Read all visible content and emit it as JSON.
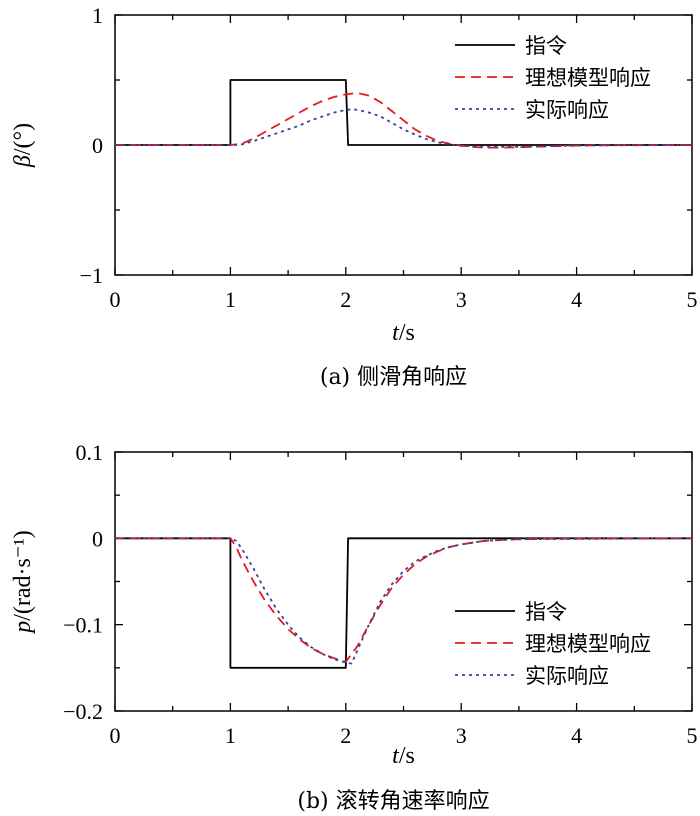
{
  "chart_data": [
    {
      "type": "line",
      "caption": "(a) 侧滑角响应",
      "xlabel_italic": "t",
      "xlabel_rest": "/s",
      "ylabel_italic": "β",
      "ylabel_rest": "/(°)",
      "xlim": [
        0,
        5
      ],
      "ylim": [
        -1,
        1
      ],
      "xticks": [
        "0",
        "1",
        "2",
        "3",
        "4",
        "5"
      ],
      "yticks": [
        "−1",
        "0",
        "1"
      ],
      "ytick_values": [
        -1,
        0,
        1
      ],
      "legend_position": "top-right",
      "grid": false,
      "series": [
        {
          "name": "指令",
          "color": "#000000",
          "style": "solid",
          "points": [
            [
              0,
              0
            ],
            [
              1,
              0
            ],
            [
              1.0,
              0.5
            ],
            [
              2.0,
              0.5
            ],
            [
              2.02,
              0
            ],
            [
              5,
              0
            ]
          ]
        },
        {
          "name": "理想模型响应",
          "color": "#e41a1c",
          "style": "dashed",
          "points": [
            [
              0,
              0
            ],
            [
              1.0,
              0
            ],
            [
              1.1,
              0.01
            ],
            [
              1.2,
              0.05
            ],
            [
              1.3,
              0.1
            ],
            [
              1.4,
              0.15
            ],
            [
              1.5,
              0.2
            ],
            [
              1.6,
              0.25
            ],
            [
              1.7,
              0.3
            ],
            [
              1.8,
              0.34
            ],
            [
              1.9,
              0.37
            ],
            [
              2.0,
              0.39
            ],
            [
              2.1,
              0.4
            ],
            [
              2.2,
              0.38
            ],
            [
              2.3,
              0.33
            ],
            [
              2.4,
              0.26
            ],
            [
              2.5,
              0.19
            ],
            [
              2.6,
              0.12
            ],
            [
              2.7,
              0.07
            ],
            [
              2.8,
              0.03
            ],
            [
              2.9,
              0.01
            ],
            [
              3.0,
              -0.005
            ],
            [
              3.1,
              -0.015
            ],
            [
              3.2,
              -0.02
            ],
            [
              3.3,
              -0.02
            ],
            [
              3.5,
              -0.018
            ],
            [
              3.7,
              -0.012
            ],
            [
              3.9,
              -0.006
            ],
            [
              4.2,
              -0.002
            ],
            [
              5.0,
              0
            ]
          ]
        },
        {
          "name": "实际响应",
          "color": "#3a3fa0",
          "style": "dotted",
          "points": [
            [
              0,
              0
            ],
            [
              1.05,
              0
            ],
            [
              1.1,
              0.005
            ],
            [
              1.2,
              0.03
            ],
            [
              1.3,
              0.06
            ],
            [
              1.4,
              0.09
            ],
            [
              1.5,
              0.12
            ],
            [
              1.6,
              0.15
            ],
            [
              1.7,
              0.19
            ],
            [
              1.8,
              0.22
            ],
            [
              1.9,
              0.25
            ],
            [
              2.0,
              0.27
            ],
            [
              2.05,
              0.275
            ],
            [
              2.1,
              0.27
            ],
            [
              2.2,
              0.25
            ],
            [
              2.3,
              0.22
            ],
            [
              2.4,
              0.17
            ],
            [
              2.5,
              0.12
            ],
            [
              2.6,
              0.08
            ],
            [
              2.7,
              0.045
            ],
            [
              2.8,
              0.02
            ],
            [
              2.9,
              0.005
            ],
            [
              3.0,
              -0.005
            ],
            [
              3.2,
              -0.013
            ],
            [
              3.4,
              -0.015
            ],
            [
              3.6,
              -0.012
            ],
            [
              3.9,
              -0.006
            ],
            [
              4.3,
              -0.002
            ],
            [
              5.0,
              0
            ]
          ]
        }
      ]
    },
    {
      "type": "line",
      "caption": "(b) 滚转角速率响应",
      "xlabel_italic": "t",
      "xlabel_rest": "/s",
      "ylabel_italic": "p",
      "ylabel_rest": "/(rad·s⁻¹)",
      "xlim": [
        0,
        5
      ],
      "ylim": [
        -0.2,
        0.1
      ],
      "xticks": [
        "0",
        "1",
        "2",
        "3",
        "4",
        "5"
      ],
      "yticks": [
        "−0.2",
        "−0.1",
        "0",
        "0.1"
      ],
      "ytick_values": [
        -0.2,
        -0.1,
        0,
        0.1
      ],
      "legend_position": "bottom-right",
      "grid": false,
      "series": [
        {
          "name": "指令",
          "color": "#000000",
          "style": "solid",
          "points": [
            [
              0,
              0
            ],
            [
              1,
              0
            ],
            [
              1.0,
              -0.15
            ],
            [
              2.0,
              -0.15
            ],
            [
              2.02,
              0
            ],
            [
              5,
              0
            ]
          ]
        },
        {
          "name": "理想模型响应",
          "color": "#e41a1c",
          "style": "dashed",
          "points": [
            [
              0,
              0
            ],
            [
              1.0,
              0
            ],
            [
              1.05,
              -0.01
            ],
            [
              1.1,
              -0.025
            ],
            [
              1.2,
              -0.05
            ],
            [
              1.3,
              -0.072
            ],
            [
              1.4,
              -0.09
            ],
            [
              1.5,
              -0.105
            ],
            [
              1.6,
              -0.117
            ],
            [
              1.7,
              -0.127
            ],
            [
              1.8,
              -0.134
            ],
            [
              1.9,
              -0.139
            ],
            [
              2.0,
              -0.143
            ],
            [
              2.1,
              -0.125
            ],
            [
              2.2,
              -0.1
            ],
            [
              2.3,
              -0.077
            ],
            [
              2.4,
              -0.057
            ],
            [
              2.5,
              -0.042
            ],
            [
              2.6,
              -0.03
            ],
            [
              2.7,
              -0.021
            ],
            [
              2.8,
              -0.015
            ],
            [
              2.9,
              -0.01
            ],
            [
              3.0,
              -0.007
            ],
            [
              3.2,
              -0.003
            ],
            [
              3.4,
              -0.0015
            ],
            [
              3.7,
              -0.0005
            ],
            [
              5.0,
              0
            ]
          ]
        },
        {
          "name": "实际响应",
          "color": "#3a3fa0",
          "style": "dotted",
          "points": [
            [
              0,
              0
            ],
            [
              1.0,
              0
            ],
            [
              1.05,
              -0.003
            ],
            [
              1.1,
              -0.012
            ],
            [
              1.2,
              -0.035
            ],
            [
              1.3,
              -0.06
            ],
            [
              1.4,
              -0.082
            ],
            [
              1.5,
              -0.1
            ],
            [
              1.6,
              -0.115
            ],
            [
              1.7,
              -0.126
            ],
            [
              1.8,
              -0.134
            ],
            [
              1.9,
              -0.14
            ],
            [
              2.0,
              -0.144
            ],
            [
              2.05,
              -0.145
            ],
            [
              2.1,
              -0.13
            ],
            [
              2.2,
              -0.1
            ],
            [
              2.3,
              -0.073
            ],
            [
              2.4,
              -0.053
            ],
            [
              2.5,
              -0.038
            ],
            [
              2.6,
              -0.027
            ],
            [
              2.7,
              -0.02
            ],
            [
              2.8,
              -0.014
            ],
            [
              2.9,
              -0.01
            ],
            [
              3.0,
              -0.007
            ],
            [
              3.2,
              -0.003
            ],
            [
              3.5,
              -0.001
            ],
            [
              5.0,
              0
            ]
          ]
        }
      ]
    }
  ]
}
